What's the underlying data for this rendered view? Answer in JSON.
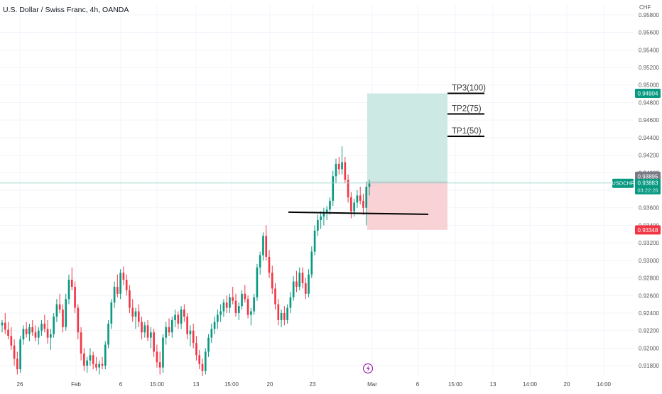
{
  "chart_data": {
    "type": "candlestick",
    "title": "U.S. Dollar / Swiss Franc, 4h, OANDA",
    "currency": "CHF",
    "symbol": "USDCHF",
    "current_price": "0.93883",
    "countdown": "03:22:26",
    "ylim": [
      0.9168,
      0.9592
    ],
    "y_ticks": [
      "0.95800",
      "0.95600",
      "0.95400",
      "0.95200",
      "0.95000",
      "0.94800",
      "0.94600",
      "0.94400",
      "0.94200",
      "0.94000",
      "0.93800",
      "0.93600",
      "0.93400",
      "0.93200",
      "0.93000",
      "0.92800",
      "0.92600",
      "0.92400",
      "0.92200",
      "0.92000",
      "0.91800"
    ],
    "x_ticks": [
      "26",
      "Feb",
      "6",
      "15:00",
      "13",
      "15:00",
      "20",
      "23",
      "Mar",
      "6",
      "15:00",
      "13",
      "14:00",
      "20",
      "14:00"
    ],
    "price_labels": {
      "target": "0.94904",
      "entry": "0.93895",
      "stop": "0.93348"
    },
    "position": {
      "entry": 0.93895,
      "target": 0.94904,
      "stop": 0.93348
    },
    "take_profits": [
      {
        "label": "TP3(100)",
        "price": 0.94904
      },
      {
        "label": "TP2(75)",
        "price": 0.9467
      },
      {
        "label": "TP1(50)",
        "price": 0.94415
      }
    ],
    "support_level": 0.9355,
    "colors": {
      "up": "#089981",
      "down": "#f23645",
      "target_zone": "#cde9e3",
      "stop_zone": "#f9d2d6",
      "target_badge": "#089981",
      "stop_badge": "#f23645",
      "entry_badge": "#787b86",
      "current_badge": "#089981"
    },
    "candles": [
      [
        0.9226,
        0.9232,
        0.9218,
        0.9229
      ],
      [
        0.9229,
        0.924,
        0.9216,
        0.9221
      ],
      [
        0.9221,
        0.923,
        0.921,
        0.9214
      ],
      [
        0.9214,
        0.9224,
        0.9198,
        0.9203
      ],
      [
        0.9203,
        0.921,
        0.918,
        0.9188
      ],
      [
        0.9188,
        0.9196,
        0.917,
        0.9176
      ],
      [
        0.9176,
        0.9214,
        0.9172,
        0.921
      ],
      [
        0.921,
        0.9226,
        0.9204,
        0.9222
      ],
      [
        0.9222,
        0.923,
        0.9212,
        0.9216
      ],
      [
        0.9216,
        0.9228,
        0.9208,
        0.9224
      ],
      [
        0.9224,
        0.9232,
        0.9214,
        0.9218
      ],
      [
        0.9218,
        0.9226,
        0.9208,
        0.9212
      ],
      [
        0.9212,
        0.9224,
        0.9204,
        0.922
      ],
      [
        0.922,
        0.9232,
        0.9214,
        0.9228
      ],
      [
        0.9228,
        0.9238,
        0.9218,
        0.9222
      ],
      [
        0.9222,
        0.9232,
        0.9205,
        0.9212
      ],
      [
        0.9212,
        0.9222,
        0.9198,
        0.9216
      ],
      [
        0.9216,
        0.924,
        0.9212,
        0.9236
      ],
      [
        0.9236,
        0.9256,
        0.923,
        0.925
      ],
      [
        0.925,
        0.9262,
        0.924,
        0.9244
      ],
      [
        0.9244,
        0.925,
        0.9218,
        0.9224
      ],
      [
        0.9224,
        0.9262,
        0.922,
        0.9256
      ],
      [
        0.9256,
        0.9284,
        0.925,
        0.9278
      ],
      [
        0.9278,
        0.9292,
        0.9266,
        0.927
      ],
      [
        0.927,
        0.9276,
        0.924,
        0.9246
      ],
      [
        0.9246,
        0.925,
        0.921,
        0.9218
      ],
      [
        0.9218,
        0.9224,
        0.9186,
        0.9194
      ],
      [
        0.9194,
        0.92,
        0.9174,
        0.918
      ],
      [
        0.918,
        0.919,
        0.9172,
        0.9186
      ],
      [
        0.9186,
        0.92,
        0.918,
        0.9192
      ],
      [
        0.9192,
        0.9196,
        0.9176,
        0.9182
      ],
      [
        0.9182,
        0.919,
        0.9174,
        0.9178
      ],
      [
        0.9178,
        0.9186,
        0.917,
        0.9182
      ],
      [
        0.9182,
        0.919,
        0.9176,
        0.918
      ],
      [
        0.918,
        0.9208,
        0.9176,
        0.9204
      ],
      [
        0.9204,
        0.9232,
        0.92,
        0.9228
      ],
      [
        0.9228,
        0.9256,
        0.9222,
        0.9252
      ],
      [
        0.9252,
        0.9276,
        0.9246,
        0.927
      ],
      [
        0.927,
        0.9284,
        0.9258,
        0.9262
      ],
      [
        0.9262,
        0.929,
        0.9256,
        0.9286
      ],
      [
        0.9286,
        0.9293,
        0.9272,
        0.9278
      ],
      [
        0.9278,
        0.9284,
        0.926,
        0.9266
      ],
      [
        0.9266,
        0.9272,
        0.924,
        0.9246
      ],
      [
        0.9246,
        0.9256,
        0.923,
        0.9236
      ],
      [
        0.9236,
        0.9246,
        0.9222,
        0.9242
      ],
      [
        0.9242,
        0.925,
        0.9224,
        0.923
      ],
      [
        0.923,
        0.9236,
        0.921,
        0.9218
      ],
      [
        0.9218,
        0.923,
        0.9212,
        0.9226
      ],
      [
        0.9226,
        0.9232,
        0.9208,
        0.9212
      ],
      [
        0.9212,
        0.9224,
        0.92,
        0.9218
      ],
      [
        0.9218,
        0.9222,
        0.919,
        0.9196
      ],
      [
        0.9196,
        0.9204,
        0.9178,
        0.9184
      ],
      [
        0.9184,
        0.9196,
        0.917,
        0.9178
      ],
      [
        0.9178,
        0.9216,
        0.9172,
        0.9212
      ],
      [
        0.9212,
        0.923,
        0.9204,
        0.9224
      ],
      [
        0.9224,
        0.9234,
        0.9214,
        0.9218
      ],
      [
        0.9218,
        0.9236,
        0.9212,
        0.9232
      ],
      [
        0.9232,
        0.9244,
        0.9224,
        0.9238
      ],
      [
        0.9238,
        0.9242,
        0.9222,
        0.9228
      ],
      [
        0.9228,
        0.9248,
        0.9222,
        0.9244
      ],
      [
        0.9244,
        0.925,
        0.923,
        0.9236
      ],
      [
        0.9236,
        0.924,
        0.921,
        0.9216
      ],
      [
        0.9216,
        0.9226,
        0.9202,
        0.922
      ],
      [
        0.922,
        0.9228,
        0.92,
        0.9206
      ],
      [
        0.9206,
        0.9214,
        0.9186,
        0.9192
      ],
      [
        0.9192,
        0.9198,
        0.9176,
        0.9182
      ],
      [
        0.9182,
        0.9188,
        0.9168,
        0.9174
      ],
      [
        0.9174,
        0.92,
        0.917,
        0.9196
      ],
      [
        0.9196,
        0.9216,
        0.919,
        0.9212
      ],
      [
        0.9212,
        0.9228,
        0.9206,
        0.9222
      ],
      [
        0.9222,
        0.9236,
        0.9216,
        0.923
      ],
      [
        0.923,
        0.9244,
        0.9222,
        0.9238
      ],
      [
        0.9238,
        0.925,
        0.923,
        0.9242
      ],
      [
        0.9242,
        0.9256,
        0.9236,
        0.9252
      ],
      [
        0.9252,
        0.926,
        0.924,
        0.9246
      ],
      [
        0.9246,
        0.9262,
        0.924,
        0.9258
      ],
      [
        0.9258,
        0.927,
        0.925,
        0.9254
      ],
      [
        0.9254,
        0.9262,
        0.9236,
        0.924
      ],
      [
        0.924,
        0.9252,
        0.9232,
        0.9248
      ],
      [
        0.9248,
        0.9266,
        0.9244,
        0.9262
      ],
      [
        0.9262,
        0.9272,
        0.9252,
        0.9256
      ],
      [
        0.9256,
        0.926,
        0.9234,
        0.9238
      ],
      [
        0.9238,
        0.9246,
        0.9226,
        0.9242
      ],
      [
        0.9242,
        0.9262,
        0.9238,
        0.9258
      ],
      [
        0.9258,
        0.9296,
        0.9254,
        0.9292
      ],
      [
        0.9292,
        0.931,
        0.9284,
        0.9306
      ],
      [
        0.9306,
        0.9332,
        0.93,
        0.9328
      ],
      [
        0.9328,
        0.934,
        0.93,
        0.9304
      ],
      [
        0.9304,
        0.9312,
        0.928,
        0.9286
      ],
      [
        0.9286,
        0.9294,
        0.9262,
        0.9268
      ],
      [
        0.9268,
        0.9274,
        0.9244,
        0.925
      ],
      [
        0.925,
        0.9256,
        0.9226,
        0.9232
      ],
      [
        0.9232,
        0.9244,
        0.9224,
        0.924
      ],
      [
        0.924,
        0.9248,
        0.9226,
        0.9232
      ],
      [
        0.9232,
        0.925,
        0.9228,
        0.9246
      ],
      [
        0.9246,
        0.9264,
        0.924,
        0.9258
      ],
      [
        0.9258,
        0.9282,
        0.9254,
        0.9276
      ],
      [
        0.9276,
        0.9288,
        0.9264,
        0.927
      ],
      [
        0.927,
        0.9292,
        0.9266,
        0.9286
      ],
      [
        0.9286,
        0.9292,
        0.9268,
        0.9274
      ],
      [
        0.9274,
        0.928,
        0.9256,
        0.9262
      ],
      [
        0.9262,
        0.929,
        0.9258,
        0.9284
      ],
      [
        0.9284,
        0.9316,
        0.928,
        0.931
      ],
      [
        0.931,
        0.934,
        0.9306,
        0.9334
      ],
      [
        0.9334,
        0.9352,
        0.9328,
        0.9346
      ],
      [
        0.9346,
        0.9356,
        0.9336,
        0.935
      ],
      [
        0.935,
        0.936,
        0.934,
        0.9354
      ],
      [
        0.9354,
        0.9362,
        0.9346,
        0.9358
      ],
      [
        0.9358,
        0.9372,
        0.9352,
        0.9368
      ],
      [
        0.9368,
        0.9402,
        0.9362,
        0.9396
      ],
      [
        0.9396,
        0.9416,
        0.9388,
        0.941
      ],
      [
        0.941,
        0.9418,
        0.9398,
        0.9404
      ],
      [
        0.9404,
        0.943,
        0.9398,
        0.9412
      ],
      [
        0.9412,
        0.9418,
        0.9388,
        0.9392
      ],
      [
        0.9392,
        0.9398,
        0.9366,
        0.9372
      ],
      [
        0.9372,
        0.9378,
        0.9348,
        0.9356
      ],
      [
        0.9356,
        0.937,
        0.935,
        0.9366
      ],
      [
        0.9366,
        0.938,
        0.936,
        0.9374
      ],
      [
        0.9374,
        0.9384,
        0.9364,
        0.9368
      ],
      [
        0.9368,
        0.9376,
        0.9352,
        0.936
      ],
      [
        0.936,
        0.939,
        0.934,
        0.9384
      ],
      [
        0.9384,
        0.9392,
        0.9374,
        0.9388
      ]
    ]
  }
}
